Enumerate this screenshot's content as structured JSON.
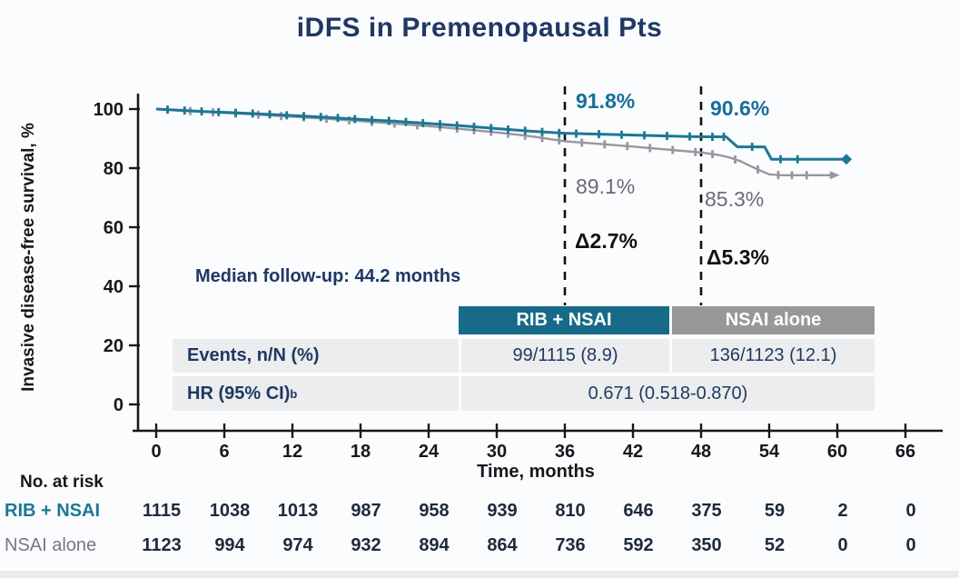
{
  "title": "iDFS in Premenopausal Pts",
  "colors": {
    "rib_teal": "#1d7795",
    "nsai_gray": "#97979d",
    "navy_text": "#1f3864",
    "annotation_teal": "#176f9a",
    "annotation_gray": "#6f6878",
    "header_teal_bg": "#176b89",
    "header_gray_bg": "#98989b",
    "row_bg": "#ecedee"
  },
  "annotations": {
    "rib_36": "91.8%",
    "nsai_36": "89.1%",
    "rib_48": "90.6%",
    "nsai_48": "85.3%",
    "delta_36": "Δ2.7%",
    "delta_48": "Δ5.3%",
    "median_followup": "Median follow-up: 44.2 months"
  },
  "summary_table": {
    "columns": [
      "RIB + NSAI",
      "NSAI alone"
    ],
    "rows": [
      {
        "label": "Events, n/N (%)",
        "values": [
          "99/1115 (8.9)",
          "136/1123 (12.1)"
        ]
      },
      {
        "label": "HR (95% CI)",
        "label_sup": "b",
        "merged_value": "0.671 (0.518-0.870)"
      }
    ]
  },
  "risk_table": {
    "title": "No. at risk",
    "rows": [
      {
        "label": "RIB + NSAI",
        "values": [
          1115,
          1038,
          1013,
          987,
          958,
          939,
          810,
          646,
          375,
          59,
          2,
          0
        ]
      },
      {
        "label": "NSAI alone",
        "values": [
          1123,
          994,
          974,
          932,
          894,
          864,
          736,
          592,
          350,
          52,
          0,
          0
        ]
      }
    ]
  },
  "chart_data": {
    "type": "line",
    "subtype": "kaplan-meier",
    "title": "iDFS in Premenopausal Pts",
    "xlabel": "Time, months",
    "ylabel": "Invasive disease-free survival, %",
    "xlim": [
      0,
      66
    ],
    "ylim": [
      0,
      100
    ],
    "x_ticks": [
      0,
      6,
      12,
      18,
      24,
      30,
      36,
      42,
      48,
      54,
      60,
      66
    ],
    "y_ticks": [
      0,
      20,
      40,
      60,
      80,
      100
    ],
    "grid": false,
    "dashed_landmark_months": [
      36,
      48
    ],
    "landmark_values": {
      "36": {
        "RIB + NSAI": 91.8,
        "NSAI alone": 89.1,
        "delta": 2.7
      },
      "48": {
        "RIB + NSAI": 90.6,
        "NSAI alone": 85.3,
        "delta": 5.3
      }
    },
    "series": [
      {
        "name": "NSAI alone",
        "color": "#97979d",
        "width": 2.4,
        "end_marker": "arrow",
        "points": [
          [
            0,
            100
          ],
          [
            2,
            99.5
          ],
          [
            4,
            99.1
          ],
          [
            6,
            98.7
          ],
          [
            9,
            98.1
          ],
          [
            12,
            97.4
          ],
          [
            15,
            96.7
          ],
          [
            18,
            95.9
          ],
          [
            21,
            95.1
          ],
          [
            24,
            94.2
          ],
          [
            27,
            93.2
          ],
          [
            30,
            92.1
          ],
          [
            33,
            90.8
          ],
          [
            36,
            89.1
          ],
          [
            39,
            88.2
          ],
          [
            42,
            87.3
          ],
          [
            45,
            86.3
          ],
          [
            48,
            85.3
          ],
          [
            49.5,
            84.5
          ],
          [
            50.5,
            83.6
          ],
          [
            51.5,
            82.3
          ],
          [
            52.3,
            80.8
          ],
          [
            53.2,
            79.2
          ],
          [
            54,
            77.9
          ],
          [
            55,
            77.6
          ],
          [
            59.5,
            77.6
          ]
        ],
        "censor_months": [
          3,
          5,
          7,
          9,
          11,
          13,
          15,
          17,
          19,
          21,
          23,
          25,
          26.5,
          28,
          29.5,
          31,
          32.5,
          34,
          35.5,
          37.5,
          39.5,
          41.5,
          43.5,
          45.5,
          47.5,
          49,
          51,
          53,
          54.8,
          56,
          57.3
        ]
      },
      {
        "name": "RIB + NSAI",
        "color": "#1d7795",
        "width": 3,
        "end_marker": "diamond",
        "points": [
          [
            0,
            100
          ],
          [
            2,
            99.6
          ],
          [
            4,
            99.2
          ],
          [
            6,
            98.9
          ],
          [
            9,
            98.4
          ],
          [
            12,
            97.8
          ],
          [
            15,
            97.2
          ],
          [
            18,
            96.5
          ],
          [
            21,
            95.9
          ],
          [
            24,
            95.1
          ],
          [
            27,
            94.3
          ],
          [
            30,
            93.4
          ],
          [
            33,
            92.5
          ],
          [
            36,
            91.8
          ],
          [
            39,
            91.5
          ],
          [
            42,
            91.2
          ],
          [
            45,
            90.9
          ],
          [
            48,
            90.6
          ],
          [
            50.2,
            90.6
          ],
          [
            51.2,
            87.2
          ],
          [
            53.6,
            87.2
          ],
          [
            54.2,
            83.0
          ],
          [
            60.8,
            83.0
          ]
        ],
        "censor_months": [
          1,
          2.5,
          4,
          5.5,
          7,
          8.5,
          10,
          11.5,
          13,
          14.5,
          16,
          17.5,
          19,
          20.5,
          22,
          23.5,
          25,
          26.5,
          28,
          29.5,
          31,
          32.5,
          34,
          35.5,
          37,
          39,
          41,
          43,
          45,
          47,
          49,
          50,
          52.5,
          55,
          56.5
        ]
      }
    ]
  }
}
